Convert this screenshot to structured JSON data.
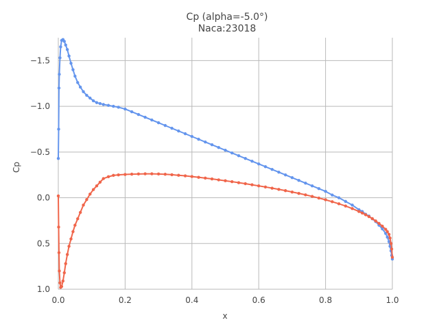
{
  "chart_data": {
    "type": "line",
    "title": "Cp (alpha=-5.0°)",
    "subtitle": "Naca:23018",
    "xlabel": "x",
    "ylabel": "Cp",
    "xlim": [
      0.0,
      1.0
    ],
    "ylim": [
      1.0,
      -1.75
    ],
    "y_inverted": true,
    "grid": true,
    "legend": "none",
    "x_ticks": [
      {
        "value": 0.0,
        "label": "0.0"
      },
      {
        "value": 0.2,
        "label": "0.2"
      },
      {
        "value": 0.4,
        "label": "0.4"
      },
      {
        "value": 0.6,
        "label": "0.6"
      },
      {
        "value": 0.8,
        "label": "0.8"
      },
      {
        "value": 1.0,
        "label": "1.0"
      }
    ],
    "y_ticks": [
      {
        "value": -1.5,
        "label": "−1.5"
      },
      {
        "value": -1.0,
        "label": "−1.0"
      },
      {
        "value": -0.5,
        "label": "−0.5"
      },
      {
        "value": 0.0,
        "label": "0.0"
      },
      {
        "value": 0.5,
        "label": "0.5"
      },
      {
        "value": 1.0,
        "label": "1.0"
      }
    ],
    "series": [
      {
        "color": "#6495ed",
        "x": [
          0.0,
          0.001,
          0.002,
          0.003,
          0.005,
          0.007,
          0.01,
          0.014,
          0.018,
          0.022,
          0.027,
          0.032,
          0.038,
          0.044,
          0.05,
          0.058,
          0.066,
          0.075,
          0.085,
          0.095,
          0.105,
          0.115,
          0.125,
          0.135,
          0.15,
          0.165,
          0.18,
          0.2,
          0.22,
          0.24,
          0.26,
          0.28,
          0.3,
          0.32,
          0.34,
          0.36,
          0.38,
          0.4,
          0.42,
          0.44,
          0.46,
          0.48,
          0.5,
          0.52,
          0.54,
          0.56,
          0.58,
          0.6,
          0.62,
          0.64,
          0.66,
          0.68,
          0.7,
          0.72,
          0.74,
          0.76,
          0.78,
          0.8,
          0.82,
          0.84,
          0.86,
          0.88,
          0.9,
          0.91,
          0.92,
          0.93,
          0.94,
          0.95,
          0.96,
          0.97,
          0.98,
          0.985,
          0.99,
          0.993,
          0.996,
          0.998,
          1.0
        ],
        "y": [
          -0.43,
          -0.75,
          -1.2,
          -1.35,
          -1.53,
          -1.65,
          -1.72,
          -1.73,
          -1.71,
          -1.67,
          -1.62,
          -1.55,
          -1.47,
          -1.4,
          -1.33,
          -1.26,
          -1.21,
          -1.16,
          -1.12,
          -1.09,
          -1.06,
          -1.04,
          -1.03,
          -1.02,
          -1.01,
          -1.0,
          -0.99,
          -0.97,
          -0.94,
          -0.91,
          -0.88,
          -0.85,
          -0.82,
          -0.79,
          -0.76,
          -0.73,
          -0.7,
          -0.67,
          -0.64,
          -0.61,
          -0.58,
          -0.55,
          -0.52,
          -0.49,
          -0.46,
          -0.43,
          -0.4,
          -0.37,
          -0.34,
          -0.31,
          -0.28,
          -0.25,
          -0.22,
          -0.19,
          -0.16,
          -0.13,
          -0.1,
          -0.07,
          -0.03,
          0.0,
          0.04,
          0.08,
          0.13,
          0.15,
          0.18,
          0.2,
          0.23,
          0.26,
          0.3,
          0.34,
          0.39,
          0.43,
          0.48,
          0.53,
          0.58,
          0.63,
          0.67
        ]
      },
      {
        "color": "#f0654a",
        "x": [
          0.0,
          0.001,
          0.002,
          0.003,
          0.005,
          0.007,
          0.01,
          0.014,
          0.018,
          0.022,
          0.027,
          0.032,
          0.038,
          0.044,
          0.05,
          0.058,
          0.066,
          0.075,
          0.085,
          0.095,
          0.105,
          0.115,
          0.125,
          0.135,
          0.15,
          0.165,
          0.18,
          0.2,
          0.22,
          0.24,
          0.26,
          0.28,
          0.3,
          0.32,
          0.34,
          0.36,
          0.38,
          0.4,
          0.42,
          0.44,
          0.46,
          0.48,
          0.5,
          0.52,
          0.54,
          0.56,
          0.58,
          0.6,
          0.62,
          0.64,
          0.66,
          0.68,
          0.7,
          0.72,
          0.74,
          0.76,
          0.78,
          0.8,
          0.82,
          0.84,
          0.86,
          0.88,
          0.9,
          0.91,
          0.92,
          0.93,
          0.94,
          0.95,
          0.96,
          0.97,
          0.98,
          0.985,
          0.99,
          0.993,
          0.996,
          0.998,
          1.0
        ],
        "y": [
          -0.02,
          0.32,
          0.6,
          0.8,
          0.93,
          0.98,
          0.97,
          0.91,
          0.82,
          0.72,
          0.62,
          0.53,
          0.45,
          0.37,
          0.3,
          0.23,
          0.16,
          0.08,
          0.02,
          -0.04,
          -0.09,
          -0.13,
          -0.17,
          -0.21,
          -0.23,
          -0.245,
          -0.25,
          -0.255,
          -0.258,
          -0.26,
          -0.262,
          -0.262,
          -0.26,
          -0.257,
          -0.252,
          -0.246,
          -0.24,
          -0.232,
          -0.224,
          -0.215,
          -0.206,
          -0.196,
          -0.186,
          -0.176,
          -0.165,
          -0.154,
          -0.142,
          -0.13,
          -0.118,
          -0.105,
          -0.092,
          -0.078,
          -0.063,
          -0.048,
          -0.032,
          -0.015,
          0.003,
          0.022,
          0.043,
          0.066,
          0.09,
          0.118,
          0.15,
          0.167,
          0.186,
          0.206,
          0.228,
          0.253,
          0.28,
          0.31,
          0.345,
          0.37,
          0.4,
          0.44,
          0.5,
          0.56,
          0.65
        ]
      }
    ]
  }
}
